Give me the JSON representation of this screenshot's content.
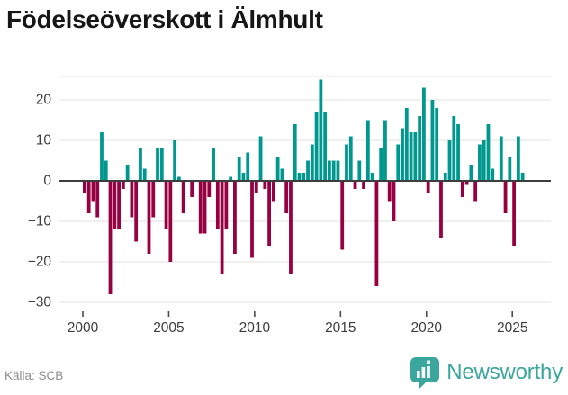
{
  "title": "Födelseöverskott i Älmhult",
  "source": "Källa: SCB",
  "branding": {
    "name": "Newsworthy",
    "color": "#3aa69d"
  },
  "colors": {
    "positive_bar": "#00988E",
    "negative_bar": "#970141",
    "gridline": "#e7e7e7",
    "zero_line": "#3d3d3d",
    "axis_text": "#3d3d3d",
    "title_text": "#161616",
    "source_text": "#8c8c8c"
  },
  "chart_data": {
    "type": "bar",
    "title": "Födelseöverskott i Älmhult",
    "xlabel": "",
    "ylabel": "",
    "frequency": "quarterly",
    "x_start": "2000-Q1",
    "x_end": "2025-Q3",
    "start_year": 2000,
    "x_tick_labels": [
      "2000",
      "2005",
      "2010",
      "2015",
      "2020",
      "2025"
    ],
    "y_ticks": [
      20,
      10,
      0,
      -10,
      -20,
      -30
    ],
    "ylim": [
      -32,
      26
    ],
    "grid": true,
    "legend": false,
    "series": [
      {
        "name": "Födelseöverskott",
        "values": [
          -3,
          -8,
          -5,
          -9,
          12,
          5,
          -28,
          -12,
          -12,
          -2,
          4,
          -9,
          -15,
          8,
          3,
          -18,
          -9,
          8,
          8,
          -12,
          -20,
          10,
          1,
          -8,
          0,
          -4,
          0,
          -13,
          -13,
          -4,
          8,
          -12,
          -23,
          -12,
          1,
          -18,
          6,
          2,
          7,
          -19,
          -3,
          11,
          -2,
          -16,
          -5,
          6,
          3,
          -8,
          -23,
          14,
          2,
          2,
          5,
          9,
          17,
          25,
          17,
          5,
          5,
          5,
          -17,
          9,
          11,
          -2,
          5,
          -2,
          15,
          2,
          -26,
          8,
          15,
          -5,
          -10,
          9,
          13,
          18,
          12,
          12,
          16,
          23,
          -3,
          20,
          18,
          -14,
          2,
          10,
          16,
          14,
          -4,
          -1,
          4,
          -5,
          9,
          10,
          14,
          3,
          0,
          11,
          -8,
          6,
          -16,
          11,
          2
        ]
      }
    ]
  }
}
